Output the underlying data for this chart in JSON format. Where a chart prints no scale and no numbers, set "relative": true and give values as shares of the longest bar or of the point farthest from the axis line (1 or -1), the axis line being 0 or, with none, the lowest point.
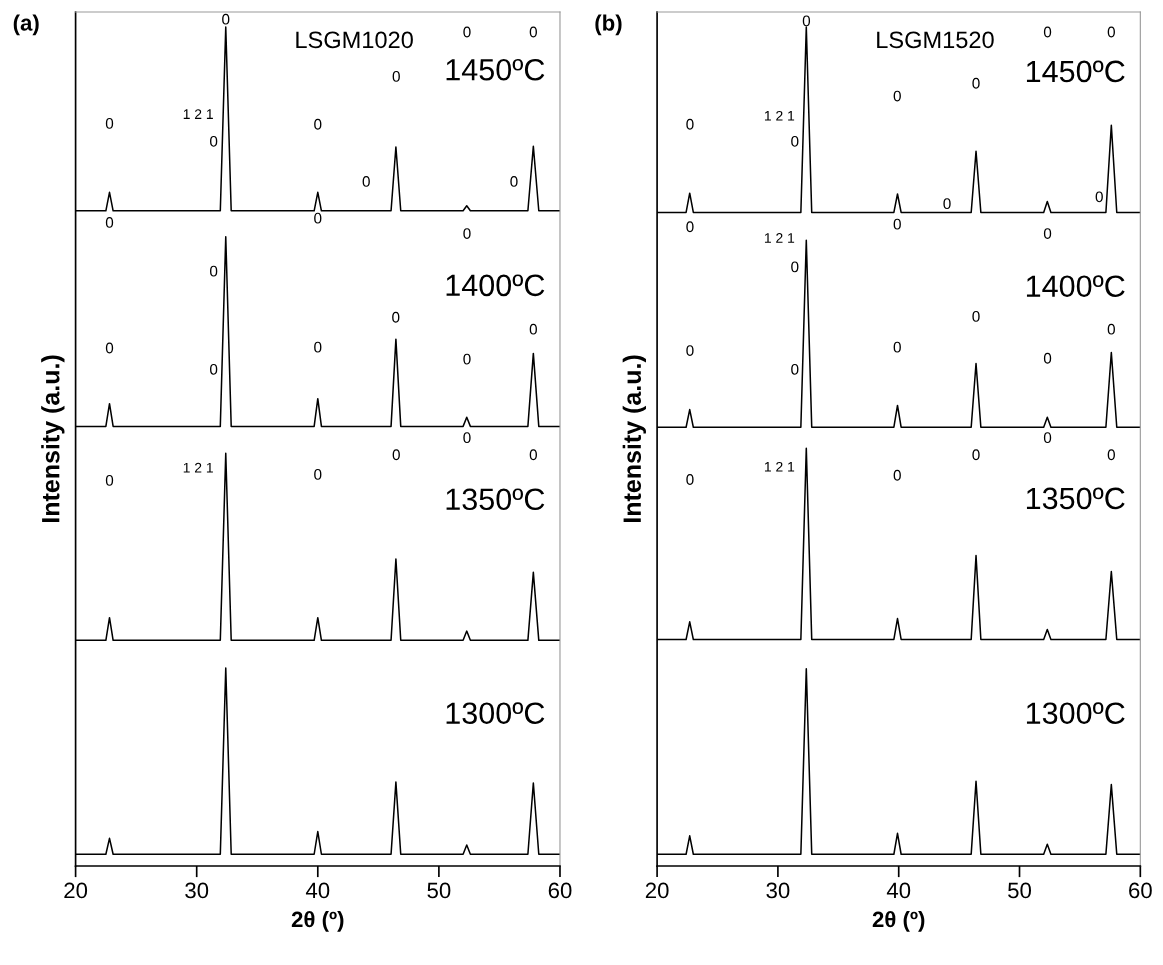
{
  "chart_data": [
    {
      "type": "line",
      "title": "(a)",
      "xlabel": "2θ (º)",
      "ylabel": "Intensity (a.u.)",
      "relative": true,
      "xlim": [
        20,
        60
      ],
      "xticks": [
        20,
        30,
        40,
        50,
        60
      ],
      "grid": false,
      "legend": false,
      "marker": "none",
      "line_style": "solid",
      "tick_labels": "x",
      "x": [
        20,
        22.5,
        22.8,
        23.1,
        31.95,
        32.4,
        32.85,
        39.7,
        40.0,
        40.3,
        46.05,
        46.45,
        46.85,
        52.0,
        52.3,
        52.6,
        57.35,
        57.8,
        58.25,
        60
      ],
      "series": [
        {
          "name": "1450ºC",
          "color": "#000000",
          "values": [
            0.781,
            0.781,
            0.803,
            0.781,
            0.781,
            1.0,
            0.781,
            0.781,
            0.803,
            0.781,
            0.781,
            0.857,
            0.781,
            0.781,
            0.787,
            0.781,
            0.781,
            0.858,
            0.781,
            0.781
          ]
        },
        {
          "name": "1400ºC",
          "color": "#000000",
          "values": [
            0.524,
            0.524,
            0.551,
            0.524,
            0.524,
            0.75,
            0.524,
            0.524,
            0.557,
            0.524,
            0.524,
            0.628,
            0.524,
            0.524,
            0.535,
            0.524,
            0.524,
            0.611,
            0.524,
            0.524
          ]
        },
        {
          "name": "1350ºC",
          "color": "#000000",
          "values": [
            0.269,
            0.269,
            0.296,
            0.269,
            0.269,
            0.492,
            0.269,
            0.269,
            0.296,
            0.269,
            0.269,
            0.366,
            0.269,
            0.269,
            0.28,
            0.269,
            0.269,
            0.35,
            0.269,
            0.269
          ]
        },
        {
          "name": "1300ºC",
          "color": "#000000",
          "values": [
            0.014,
            0.014,
            0.033,
            0.014,
            0.014,
            0.236,
            0.014,
            0.014,
            0.041,
            0.014,
            0.014,
            0.1,
            0.014,
            0.014,
            0.025,
            0.014,
            0.014,
            0.099,
            0.014,
            0.014
          ]
        }
      ],
      "annotations": [
        "LSGM1020",
        "0",
        "0",
        "1 2 1",
        "0",
        "0",
        "0",
        "0",
        "0",
        "0",
        "0",
        "0",
        "0",
        "0",
        "0",
        "0",
        "0",
        "0",
        "0",
        "0",
        "0",
        "0",
        "1 2 1",
        "0",
        "0",
        "0",
        "0"
      ]
    },
    {
      "type": "line",
      "title": "(b)",
      "xlabel": "2θ (º)",
      "ylabel": "Intensity (a.u.)",
      "relative": true,
      "xlim": [
        20,
        60
      ],
      "xticks": [
        20,
        30,
        40,
        50,
        60
      ],
      "grid": false,
      "legend": false,
      "marker": "none",
      "line_style": "solid",
      "tick_labels": "x",
      "x": [
        20,
        22.4,
        22.7,
        23.0,
        31.9,
        32.35,
        32.8,
        39.6,
        39.9,
        40.2,
        46.0,
        46.4,
        46.8,
        52.0,
        52.3,
        52.6,
        57.15,
        57.6,
        58.05,
        60
      ],
      "series": [
        {
          "name": "1450ºC",
          "color": "#000000",
          "values": [
            0.779,
            0.779,
            0.802,
            0.779,
            0.779,
            1.0,
            0.779,
            0.779,
            0.801,
            0.779,
            0.779,
            0.852,
            0.779,
            0.779,
            0.792,
            0.779,
            0.779,
            0.883,
            0.779,
            0.779
          ]
        },
        {
          "name": "1400ºC",
          "color": "#000000",
          "values": [
            0.523,
            0.523,
            0.544,
            0.523,
            0.523,
            0.746,
            0.523,
            0.523,
            0.549,
            0.523,
            0.523,
            0.599,
            0.523,
            0.523,
            0.535,
            0.523,
            0.523,
            0.612,
            0.523,
            0.523
          ]
        },
        {
          "name": "1350ºC",
          "color": "#000000",
          "values": [
            0.27,
            0.27,
            0.291,
            0.27,
            0.27,
            0.498,
            0.27,
            0.27,
            0.295,
            0.27,
            0.27,
            0.37,
            0.27,
            0.27,
            0.282,
            0.27,
            0.27,
            0.351,
            0.27,
            0.27
          ]
        },
        {
          "name": "1300ºC",
          "color": "#000000",
          "values": [
            0.014,
            0.014,
            0.036,
            0.014,
            0.014,
            0.235,
            0.014,
            0.014,
            0.039,
            0.014,
            0.014,
            0.101,
            0.014,
            0.014,
            0.026,
            0.014,
            0.014,
            0.097,
            0.014,
            0.014
          ]
        }
      ],
      "annotations": [
        "LSGM1520",
        "0",
        "0",
        "1 2 1",
        "0",
        "0",
        "0",
        "0",
        "0",
        "0",
        "0",
        "0",
        "1 2 1",
        "0",
        "0",
        "0",
        "0",
        "0",
        "0",
        "0",
        "0",
        "0",
        "0",
        "1 2 1",
        "0",
        "0",
        "0",
        "0"
      ]
    }
  ]
}
